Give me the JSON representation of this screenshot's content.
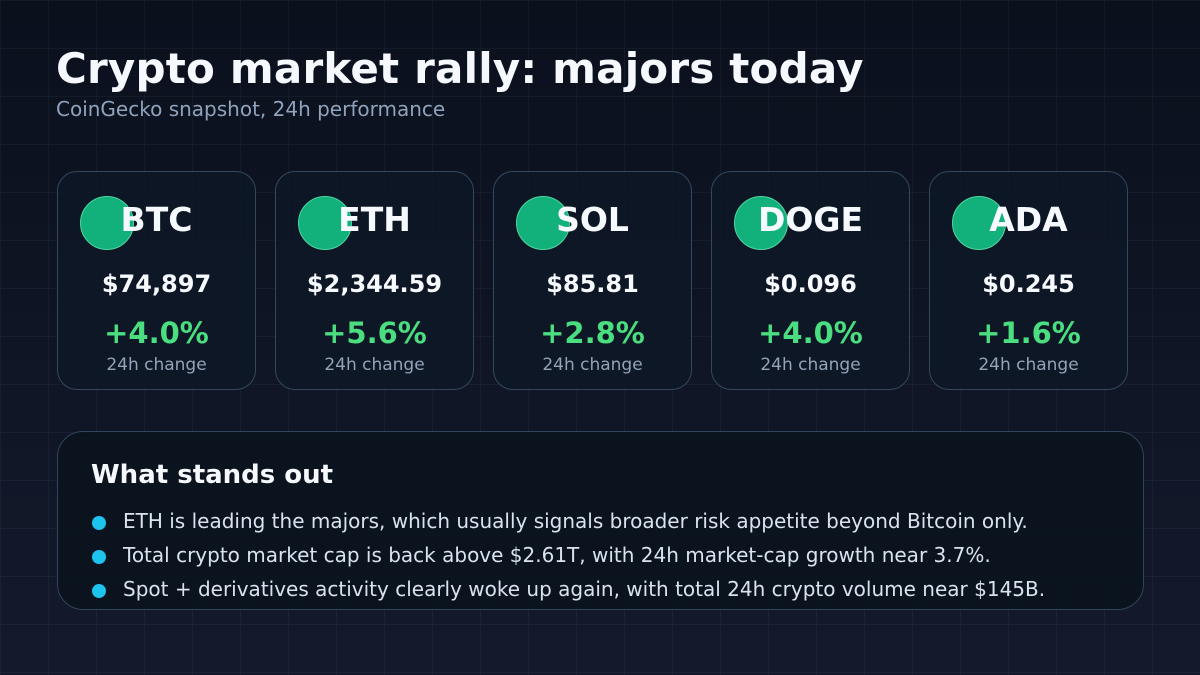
{
  "header": {
    "title": "Crypto market rally: majors today",
    "subtitle": "CoinGecko snapshot, 24h performance"
  },
  "colors": {
    "positive_change": "#4ade80",
    "coin_icon": "#12b07a",
    "bullet": "#1cc4ee",
    "card_border": "#34475e"
  },
  "cards": [
    {
      "symbol": "BTC",
      "price": "$74,897",
      "change": "+4.0%",
      "change_label": "24h change",
      "icon": "coin-icon"
    },
    {
      "symbol": "ETH",
      "price": "$2,344.59",
      "change": "+5.6%",
      "change_label": "24h change",
      "icon": "coin-icon"
    },
    {
      "symbol": "SOL",
      "price": "$85.81",
      "change": "+2.8%",
      "change_label": "24h change",
      "icon": "coin-icon"
    },
    {
      "symbol": "DOGE",
      "price": "$0.096",
      "change": "+4.0%",
      "change_label": "24h change",
      "icon": "coin-icon"
    },
    {
      "symbol": "ADA",
      "price": "$0.245",
      "change": "+1.6%",
      "change_label": "24h change",
      "icon": "coin-icon"
    }
  ],
  "highlights": {
    "title": "What stands out",
    "items": [
      "ETH is leading the majors, which usually signals broader risk appetite beyond Bitcoin only.",
      "Total crypto market cap is back above $2.61T, with 24h market-cap growth near 3.7%.",
      "Spot + derivatives activity clearly woke up again, with total 24h crypto volume near $145B."
    ]
  }
}
